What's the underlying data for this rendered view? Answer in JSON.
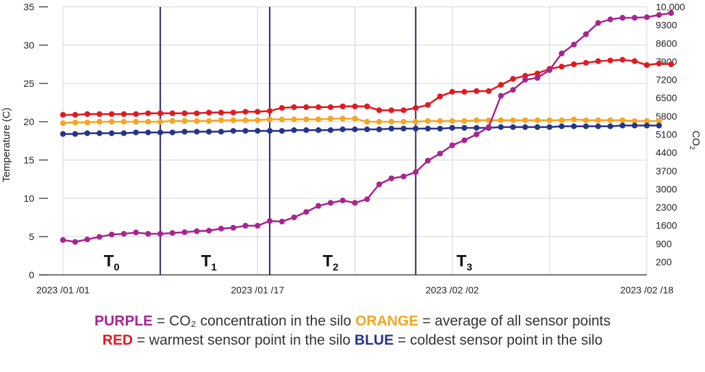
{
  "chart_data": {
    "type": "line",
    "y_left_label": "Temperature (C)",
    "y_right_label": "CO",
    "y_right_label_sub": "2",
    "ylim_left": [
      0,
      35
    ],
    "yticks_left": [
      "0",
      "5",
      "10",
      "15",
      "20",
      "25",
      "30",
      "35"
    ],
    "ylim_right": [
      -300,
      10000
    ],
    "yticks_right": [
      "200",
      "900",
      "1600",
      "2300",
      "3000",
      "3700",
      "4400",
      "5100",
      "5800",
      "6500",
      "7200",
      "7900",
      "8600",
      "9300",
      "10,000"
    ],
    "x_start": "2023-01-01",
    "x_end": "2023-02-18",
    "xticks": [
      {
        "date": "2023-01-01",
        "label": "2023 /01 /01"
      },
      {
        "date": "2023-01-17",
        "label": "2023 /01 /17"
      },
      {
        "date": "2023-02-02",
        "label": "2023 /02 /02"
      },
      {
        "date": "2023-02-18",
        "label": "2023 /02 /18"
      }
    ],
    "minor_grid_dates": [
      "2023-01-09",
      "2023-01-25",
      "2023-02-10"
    ],
    "phase_boundaries": [
      "2023-01-09",
      "2023-01-18",
      "2023-01-30"
    ],
    "phases": [
      {
        "label": "T",
        "sub": "0",
        "date": "2023-01-05"
      },
      {
        "label": "T",
        "sub": "1",
        "date": "2023-01-13"
      },
      {
        "label": "T",
        "sub": "2",
        "date": "2023-01-23"
      },
      {
        "label": "T",
        "sub": "3",
        "date": "2023-02-03"
      }
    ],
    "phase_label_value": 2,
    "series": [
      {
        "key": "red",
        "color": "#e01a22",
        "axis": "left",
        "start_date": "2023-01-01",
        "step_days": 1,
        "values": [
          20.9,
          20.9,
          21.0,
          21.0,
          21.0,
          21.0,
          21.0,
          21.1,
          21.1,
          21.1,
          21.1,
          21.1,
          21.2,
          21.2,
          21.2,
          21.3,
          21.3,
          21.4,
          21.8,
          21.9,
          21.9,
          21.9,
          21.9,
          22.0,
          22.0,
          22.0,
          21.5,
          21.5,
          21.5,
          21.8,
          22.2,
          23.3,
          23.9,
          23.9,
          24.0,
          24.0,
          24.8,
          25.6,
          26.0,
          26.3,
          26.9,
          27.2,
          27.5,
          27.7,
          27.9,
          28.0,
          28.1,
          27.9,
          27.4,
          27.6,
          27.5
        ]
      },
      {
        "key": "orange",
        "color": "#f5a623",
        "axis": "left",
        "start_date": "2023-01-01",
        "step_days": 1,
        "values": [
          19.8,
          19.9,
          19.9,
          20.0,
          20.0,
          20.0,
          20.0,
          20.0,
          20.0,
          20.1,
          20.1,
          20.1,
          20.1,
          20.2,
          20.2,
          20.2,
          20.2,
          20.3,
          20.3,
          20.3,
          20.3,
          20.3,
          20.4,
          20.4,
          20.4,
          20.0,
          20.0,
          20.0,
          20.0,
          20.0,
          20.1,
          20.1,
          20.1,
          20.1,
          20.2,
          20.2,
          20.2,
          20.2,
          20.2,
          20.2,
          20.2,
          20.2,
          20.3,
          20.2,
          20.2,
          20.2,
          20.2,
          20.1,
          20.1,
          20.1
        ]
      },
      {
        "key": "blue",
        "color": "#27348b",
        "axis": "left",
        "start_date": "2023-01-01",
        "step_days": 1,
        "values": [
          18.4,
          18.4,
          18.5,
          18.5,
          18.5,
          18.5,
          18.6,
          18.6,
          18.6,
          18.6,
          18.7,
          18.7,
          18.7,
          18.7,
          18.8,
          18.8,
          18.8,
          18.8,
          18.8,
          18.9,
          18.9,
          18.9,
          18.9,
          19.0,
          19.0,
          19.0,
          19.0,
          19.1,
          19.1,
          19.1,
          19.1,
          19.1,
          19.2,
          19.2,
          19.2,
          19.2,
          19.3,
          19.3,
          19.3,
          19.3,
          19.3,
          19.4,
          19.4,
          19.4,
          19.4,
          19.4,
          19.5,
          19.5,
          19.5,
          19.5
        ]
      },
      {
        "key": "purple",
        "color": "#a8258f",
        "axis": "right",
        "start_date": "2023-01-01",
        "step_days": 1,
        "values": [
          1040,
          970,
          1060,
          1160,
          1250,
          1280,
          1330,
          1280,
          1280,
          1310,
          1340,
          1380,
          1400,
          1480,
          1510,
          1590,
          1590,
          1770,
          1750,
          1910,
          2120,
          2350,
          2470,
          2560,
          2470,
          2610,
          3180,
          3410,
          3480,
          3650,
          4090,
          4360,
          4680,
          4870,
          5100,
          5380,
          6580,
          6810,
          7200,
          7270,
          7570,
          8210,
          8550,
          8950,
          9380,
          9520,
          9580,
          9580,
          9600,
          9690,
          9760
        ]
      }
    ]
  },
  "legend": {
    "line1": [
      {
        "text": "PURPLE",
        "color": "#a8258f",
        "bold": true
      },
      {
        "text": " = CO₂ concentration in the silo ",
        "color": "#333333",
        "bold": false
      },
      {
        "text": "ORANGE",
        "color": "#f5a623",
        "bold": true
      },
      {
        "text": " = average of all sensor points",
        "color": "#333333",
        "bold": false
      }
    ],
    "line2": [
      {
        "text": "RED",
        "color": "#e01a22",
        "bold": true
      },
      {
        "text": " = warmest sensor point in the silo ",
        "color": "#333333",
        "bold": false
      },
      {
        "text": "BLUE",
        "color": "#27348b",
        "bold": true
      },
      {
        "text": " = coldest sensor point in the silo",
        "color": "#333333",
        "bold": false
      }
    ]
  }
}
